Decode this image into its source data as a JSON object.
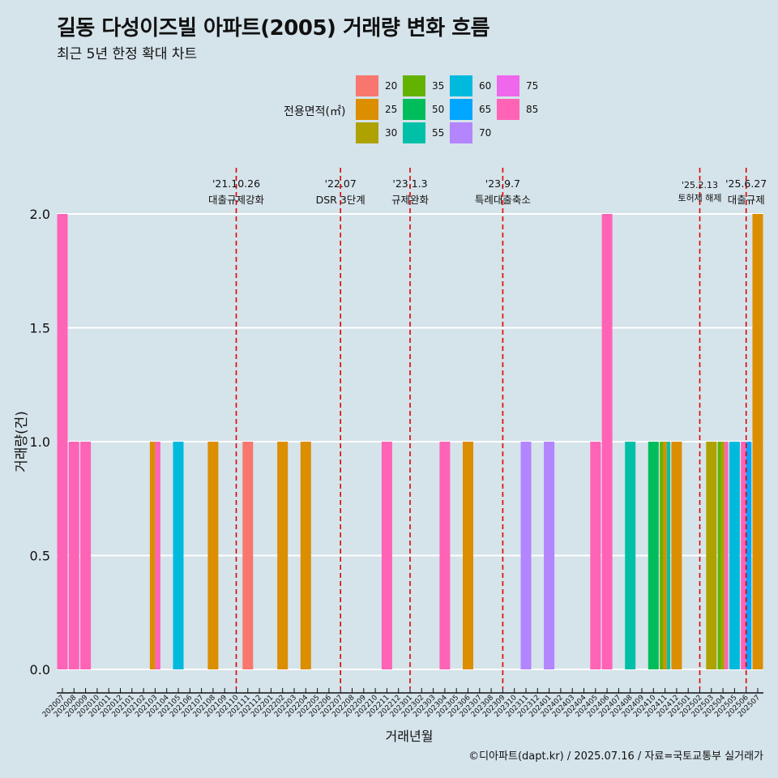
{
  "chart_data": {
    "type": "bar",
    "title": "길동 다성이즈빌 아파트(2005) 거래량 변화 흐름",
    "subtitle": "최근 5년 한정 확대 차트",
    "xlabel": "거래년월",
    "ylabel": "거래량(건)",
    "caption": "©디아파트(dapt.kr) / 2025.07.16 / 자료=국토교통부 실거래가",
    "ylim": [
      0,
      2
    ],
    "yticks": [
      "0.0",
      "0.5",
      "1.0",
      "1.5",
      "2.0"
    ],
    "legend_title": "전용면적(㎡)",
    "legend": [
      {
        "label": "20",
        "color": "#F8766D"
      },
      {
        "label": "25",
        "color": "#DB8E00"
      },
      {
        "label": "30",
        "color": "#AEA200"
      },
      {
        "label": "35",
        "color": "#64B200"
      },
      {
        "label": "50",
        "color": "#00BD5C"
      },
      {
        "label": "55",
        "color": "#00C1A7"
      },
      {
        "label": "60",
        "color": "#00BADE"
      },
      {
        "label": "65",
        "color": "#00A6FF"
      },
      {
        "label": "70",
        "color": "#B385FF"
      },
      {
        "label": "75",
        "color": "#EF67EB"
      },
      {
        "label": "85",
        "color": "#FF63B6"
      }
    ],
    "categories": [
      "202007",
      "202008",
      "202009",
      "202010",
      "202011",
      "202012",
      "202101",
      "202102",
      "202103",
      "202104",
      "202105",
      "202106",
      "202107",
      "202108",
      "202109",
      "202110",
      "202111",
      "202112",
      "202201",
      "202202",
      "202203",
      "202204",
      "202205",
      "202206",
      "202207",
      "202208",
      "202209",
      "202210",
      "202211",
      "202212",
      "202301",
      "202302",
      "202303",
      "202304",
      "202305",
      "202306",
      "202307",
      "202308",
      "202309",
      "202310",
      "202311",
      "202312",
      "202401",
      "202402",
      "202403",
      "202404",
      "202405",
      "202406",
      "202407",
      "202408",
      "202409",
      "202410",
      "202411",
      "202412",
      "202501",
      "202502",
      "202503",
      "202504",
      "202505",
      "202506",
      "202507"
    ],
    "bars": [
      {
        "month": "202007",
        "segments": [
          {
            "area": "85",
            "value": 2
          }
        ]
      },
      {
        "month": "202008",
        "segments": [
          {
            "area": "85",
            "value": 1
          }
        ]
      },
      {
        "month": "202009",
        "segments": [
          {
            "area": "85",
            "value": 1
          }
        ]
      },
      {
        "month": "202103",
        "segments": [
          {
            "area": "25",
            "value": 1
          },
          {
            "area": "85",
            "value": 1
          }
        ]
      },
      {
        "month": "202105",
        "segments": [
          {
            "area": "60",
            "value": 1
          }
        ]
      },
      {
        "month": "202108",
        "segments": [
          {
            "area": "25",
            "value": 1
          }
        ]
      },
      {
        "month": "202111",
        "segments": [
          {
            "area": "20",
            "value": 1
          }
        ]
      },
      {
        "month": "202202",
        "segments": [
          {
            "area": "25",
            "value": 1
          }
        ]
      },
      {
        "month": "202204",
        "segments": [
          {
            "area": "25",
            "value": 1
          }
        ]
      },
      {
        "month": "202211",
        "segments": [
          {
            "area": "85",
            "value": 1
          }
        ]
      },
      {
        "month": "202304",
        "segments": [
          {
            "area": "85",
            "value": 1
          }
        ]
      },
      {
        "month": "202306",
        "segments": [
          {
            "area": "25",
            "value": 1
          }
        ]
      },
      {
        "month": "202311",
        "segments": [
          {
            "area": "70",
            "value": 1
          }
        ]
      },
      {
        "month": "202401",
        "segments": [
          {
            "area": "70",
            "value": 1
          }
        ]
      },
      {
        "month": "202405",
        "segments": [
          {
            "area": "85",
            "value": 1
          }
        ]
      },
      {
        "month": "202406",
        "segments": [
          {
            "area": "85",
            "value": 2
          }
        ]
      },
      {
        "month": "202408",
        "segments": [
          {
            "area": "55",
            "value": 1
          }
        ]
      },
      {
        "month": "202410",
        "segments": [
          {
            "area": "50",
            "value": 1
          }
        ]
      },
      {
        "month": "202411",
        "segments": [
          {
            "area": "35",
            "value": 1
          },
          {
            "area": "25",
            "value": 1
          },
          {
            "area": "55",
            "value": 1
          }
        ]
      },
      {
        "month": "202412",
        "segments": [
          {
            "area": "25",
            "value": 1
          }
        ]
      },
      {
        "month": "202503",
        "segments": [
          {
            "area": "30",
            "value": 1
          }
        ]
      },
      {
        "month": "202504",
        "segments": [
          {
            "area": "35",
            "value": 1
          },
          {
            "area": "30",
            "value": 1
          },
          {
            "area": "85",
            "value": 1
          }
        ]
      },
      {
        "month": "202505",
        "segments": [
          {
            "area": "60",
            "value": 1
          }
        ]
      },
      {
        "month": "202506",
        "segments": [
          {
            "area": "85",
            "value": 1
          },
          {
            "area": "65",
            "value": 1
          }
        ]
      },
      {
        "month": "202507",
        "segments": [
          {
            "area": "25",
            "value": 2
          }
        ]
      }
    ],
    "events": [
      {
        "month_pos": 15.0,
        "date": "'21.10.26",
        "label": "대출규제강화",
        "small": false
      },
      {
        "month_pos": 24.0,
        "date": "'22.07",
        "label": "DSR 3단계",
        "small": false
      },
      {
        "month_pos": 30.0,
        "date": "'23.1.3",
        "label": "규제완화",
        "small": false
      },
      {
        "month_pos": 38.0,
        "date": "'23.9.7",
        "label": "특례대출축소",
        "small": false
      },
      {
        "month_pos": 55.0,
        "date": "'25.2.13",
        "label": "토허제 해제",
        "small": true
      },
      {
        "month_pos": 59.0,
        "date": "'25.6.27",
        "label": "대출규제",
        "small": false
      }
    ]
  }
}
